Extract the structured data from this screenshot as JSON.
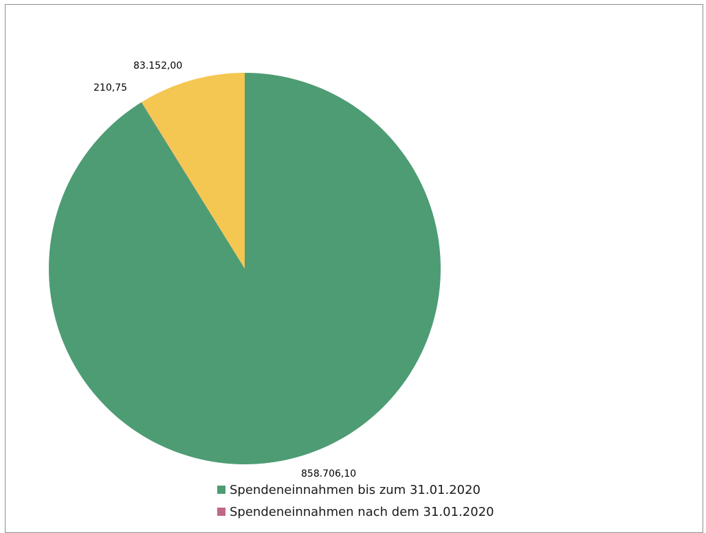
{
  "chart_data": {
    "type": "pie",
    "title": "",
    "slices": [
      {
        "name": "Spendeneinnahmen bis zum 31.01.2020",
        "value": 858706.1,
        "label": "858.706,10",
        "color": "#4d9c74"
      },
      {
        "name": "Spendeneinnahmen nach dem 31.01.2020",
        "value": 210.75,
        "label": "210,75",
        "color": "#c06888"
      },
      {
        "name": "",
        "value": 83152.0,
        "label": "83.152,00",
        "color": "#f4c752"
      }
    ],
    "legend": {
      "placement": "bottom",
      "entries": [
        {
          "label": "Spendeneinnahmen bis zum 31.01.2020",
          "color": "#4d9c74"
        },
        {
          "label": "Spendeneinnahmen nach dem 31.01.2020",
          "color": "#c06888"
        }
      ]
    }
  }
}
